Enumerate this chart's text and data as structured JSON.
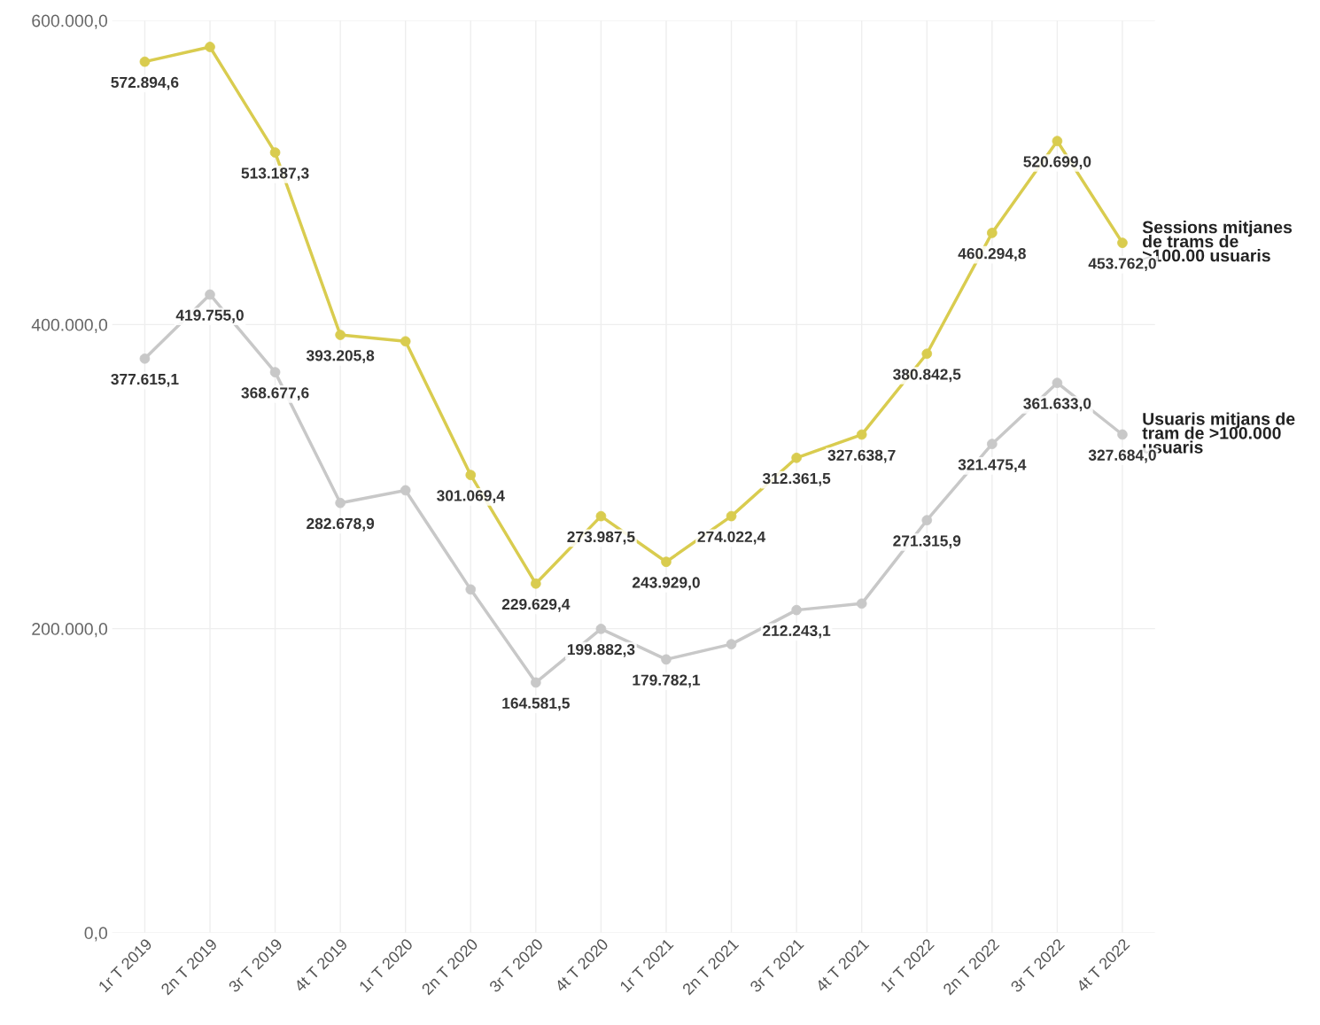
{
  "chart_data": {
    "type": "line",
    "categories": [
      "1r T 2019",
      "2n T 2019",
      "3r T 2019",
      "4t T 2019",
      "1r T 2020",
      "2n T 2020",
      "3r T 2020",
      "4t T 2020",
      "1r T 2021",
      "2n T 2021",
      "3r T 2021",
      "4t T 2021",
      "1r T 2022",
      "2n T 2022",
      "3r T 2022",
      "4t T 2022"
    ],
    "series": [
      {
        "name": "Sessions mitjanes\nde trams de\n>100.00 usuaris",
        "color": "#d9cc4f",
        "values": [
          572894.6,
          582600,
          513187.3,
          393205.8,
          389000,
          301069.4,
          229629.4,
          273987.5,
          243929.0,
          274022.4,
          312361.5,
          327638.7,
          380842.5,
          460294.8,
          520699.0,
          453762.0
        ],
        "value_labels": [
          "572.894,6",
          null,
          "513.187,3",
          "393.205,8",
          null,
          "301.069,4",
          "229.629,4",
          "273.987,5",
          "243.929,0",
          "274.022,4",
          "312.361,5",
          "327.638,7",
          "380.842,5",
          "460.294,8",
          "520.699,0",
          "453.762,0"
        ]
      },
      {
        "name": "Usuaris mitjans de\ntram de >100.000\nusuaris",
        "color": "#c8c8c8",
        "values": [
          377615.1,
          419755.0,
          368677.6,
          282678.9,
          291000,
          225800,
          164581.5,
          199882.3,
          179782.1,
          189800,
          212243.1,
          216500,
          271315.9,
          321475.4,
          361633.0,
          327684.0
        ],
        "value_labels": [
          "377.615,1",
          "419.755,0",
          "368.677,6",
          "282.678,9",
          null,
          null,
          "164.581,5",
          "199.882,3",
          "179.782,1",
          null,
          "212.243,1",
          null,
          "271.315,9",
          "321.475,4",
          "361.633,0",
          "327.684,0"
        ]
      }
    ],
    "ylim": [
      0,
      600000
    ],
    "yticks": [
      {
        "value": 0,
        "label": "0,0"
      },
      {
        "value": 200000,
        "label": "200.000,0"
      },
      {
        "value": 400000,
        "label": "400.000,0"
      },
      {
        "value": 600000,
        "label": "600.000,0"
      }
    ],
    "grid": true,
    "marker": "circle",
    "line_style": "solid"
  }
}
